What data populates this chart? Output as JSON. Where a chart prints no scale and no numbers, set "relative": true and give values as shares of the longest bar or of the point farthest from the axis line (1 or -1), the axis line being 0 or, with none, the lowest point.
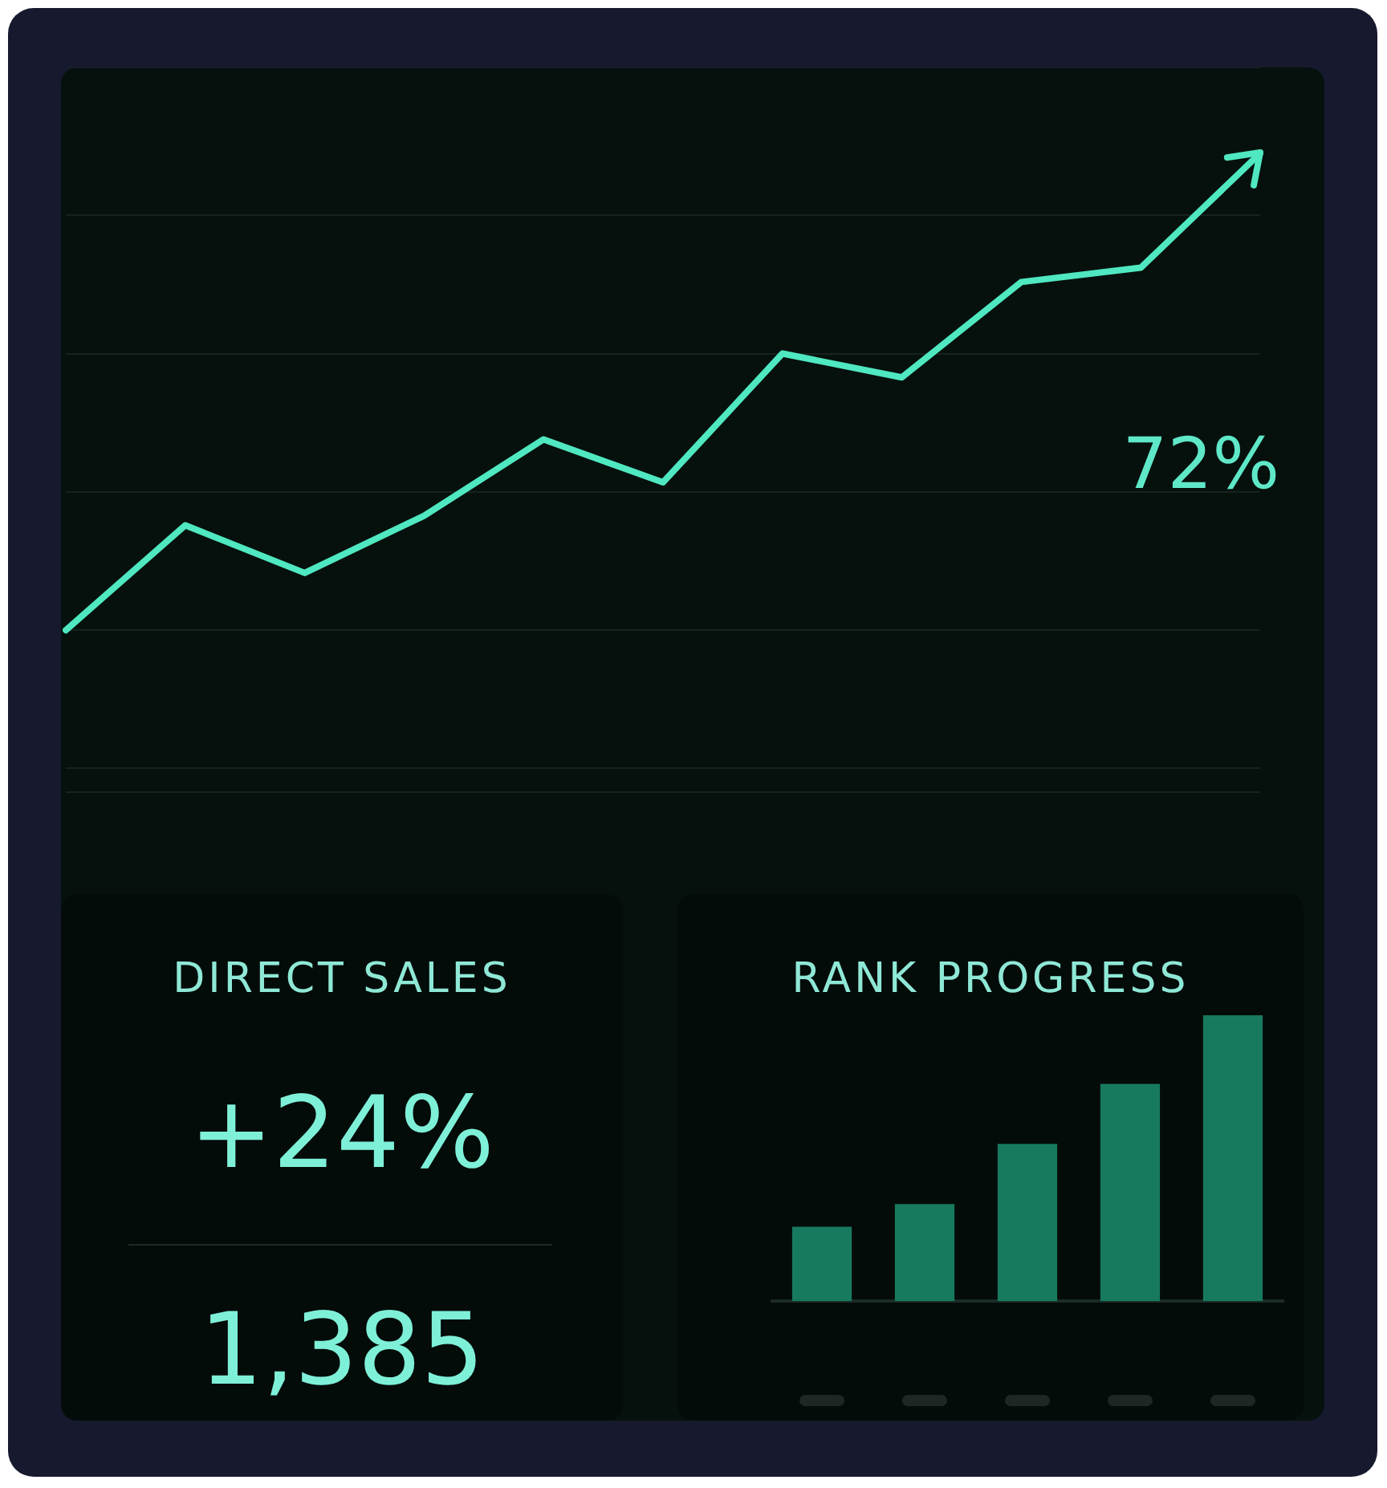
{
  "chart_data": [
    {
      "type": "line",
      "categories": [
        null,
        null,
        null,
        null,
        null,
        null,
        null,
        null,
        null,
        null,
        null
      ],
      "values": [
        0,
        0.22,
        0.12,
        0.24,
        0.4,
        0.31,
        0.58,
        0.53,
        0.73,
        0.76,
        1
      ],
      "color": "#4fe8c0",
      "relative": true,
      "grid": "y",
      "marker": "none",
      "line_style": "solid",
      "annotations": [
        "72%"
      ]
    },
    {
      "type": "other",
      "title": "DIRECT SALES",
      "annotations": [
        "+24%",
        "1,385"
      ]
    },
    {
      "type": "bar",
      "title": "RANK PROGRESS",
      "categories": [
        null,
        null,
        null,
        null,
        null
      ],
      "values": [
        0.26,
        0.34,
        0.55,
        0.76,
        1
      ],
      "color": "#177a5f",
      "relative": true
    }
  ]
}
